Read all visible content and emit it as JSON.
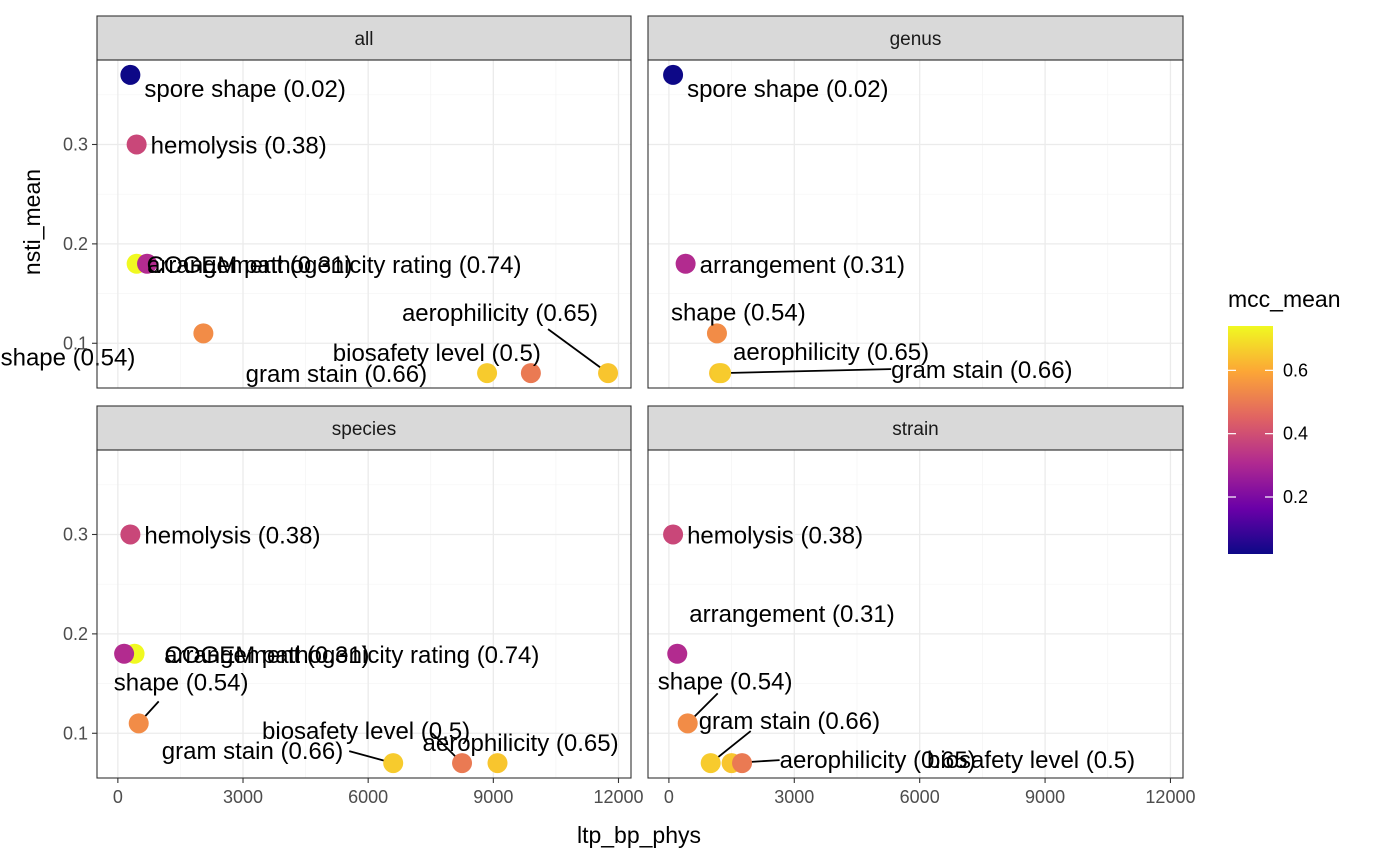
{
  "chart_data": {
    "type": "scatter",
    "xlabel": "ltp_bp_phys",
    "ylabel": "nsti_mean",
    "x_ticks": [
      0,
      3000,
      6000,
      9000,
      12000
    ],
    "y_ticks": [
      0.1,
      0.2,
      0.3
    ],
    "xlim": [
      -500,
      12300
    ],
    "ylim": [
      0.055,
      0.385
    ],
    "color_scale": {
      "name": "plasma",
      "title": "mcc_mean",
      "domain": [
        0.02,
        0.74
      ],
      "ticks": [
        0.2,
        0.4,
        0.6
      ],
      "stops": [
        "#0d0887",
        "#6a00a8",
        "#b12a90",
        "#e16462",
        "#fca636",
        "#f0f921"
      ]
    },
    "panels": [
      {
        "facet": "all",
        "points": [
          {
            "trait": "spore shape",
            "x": 300,
            "y": 0.37,
            "mcc": 0.02,
            "label": "spore shape (0.02)"
          },
          {
            "trait": "hemolysis",
            "x": 450,
            "y": 0.3,
            "mcc": 0.38,
            "label": "hemolysis (0.38)"
          },
          {
            "trait": "COGEM pathogenicity rating",
            "x": 450,
            "y": 0.18,
            "mcc": 0.74,
            "label": "COGEM pathogenicity rating (0.74)"
          },
          {
            "trait": "arrangement",
            "x": 700,
            "y": 0.18,
            "mcc": 0.31,
            "label": "arrangement (0.31)"
          },
          {
            "trait": "shape",
            "x": 2050,
            "y": 0.11,
            "mcc": 0.54,
            "label": "shape (0.54)"
          },
          {
            "trait": "gram stain",
            "x": 8850,
            "y": 0.07,
            "mcc": 0.66,
            "label": "gram stain (0.66)"
          },
          {
            "trait": "biosafety level",
            "x": 9900,
            "y": 0.07,
            "mcc": 0.5,
            "label": "biosafety level (0.5)"
          },
          {
            "trait": "aerophilicity",
            "x": 11750,
            "y": 0.07,
            "mcc": 0.65,
            "label": "aerophilicity (0.65)"
          }
        ]
      },
      {
        "facet": "genus",
        "points": [
          {
            "trait": "spore shape",
            "x": 100,
            "y": 0.37,
            "mcc": 0.02,
            "label": "spore shape (0.02)"
          },
          {
            "trait": "arrangement",
            "x": 400,
            "y": 0.18,
            "mcc": 0.31,
            "label": "arrangement (0.31)"
          },
          {
            "trait": "shape",
            "x": 1150,
            "y": 0.11,
            "mcc": 0.54,
            "label": "shape (0.54)"
          },
          {
            "trait": "aerophilicity",
            "x": 1200,
            "y": 0.07,
            "mcc": 0.65,
            "label": "aerophilicity (0.65)"
          },
          {
            "trait": "gram stain",
            "x": 1250,
            "y": 0.07,
            "mcc": 0.66,
            "label": "gram stain (0.66)"
          }
        ]
      },
      {
        "facet": "species",
        "points": [
          {
            "trait": "hemolysis",
            "x": 300,
            "y": 0.3,
            "mcc": 0.38,
            "label": "hemolysis (0.38)"
          },
          {
            "trait": "COGEM pathogenicity rating",
            "x": 400,
            "y": 0.18,
            "mcc": 0.74,
            "label": "COGEM pathogenicity rating (0.74)"
          },
          {
            "trait": "arrangement",
            "x": 150,
            "y": 0.18,
            "mcc": 0.31,
            "label": "arrangement (0.31)"
          },
          {
            "trait": "shape",
            "x": 500,
            "y": 0.11,
            "mcc": 0.54,
            "label": "shape (0.54)"
          },
          {
            "trait": "gram stain",
            "x": 6600,
            "y": 0.07,
            "mcc": 0.66,
            "label": "gram stain (0.66)"
          },
          {
            "trait": "biosafety level",
            "x": 8250,
            "y": 0.07,
            "mcc": 0.5,
            "label": "biosafety level (0.5)"
          },
          {
            "trait": "aerophilicity",
            "x": 9100,
            "y": 0.07,
            "mcc": 0.65,
            "label": "aerophilicity (0.65)"
          }
        ]
      },
      {
        "facet": "strain",
        "points": [
          {
            "trait": "hemolysis",
            "x": 100,
            "y": 0.3,
            "mcc": 0.38,
            "label": "hemolysis (0.38)"
          },
          {
            "trait": "arrangement",
            "x": 200,
            "y": 0.18,
            "mcc": 0.31,
            "label": "arrangement (0.31)"
          },
          {
            "trait": "shape",
            "x": 450,
            "y": 0.11,
            "mcc": 0.54,
            "label": "shape (0.54)"
          },
          {
            "trait": "gram stain",
            "x": 1000,
            "y": 0.07,
            "mcc": 0.66,
            "label": "gram stain (0.66)"
          },
          {
            "trait": "aerophilicity",
            "x": 1500,
            "y": 0.07,
            "mcc": 0.65,
            "label": "aerophilicity (0.65)"
          },
          {
            "trait": "biosafety level",
            "x": 1750,
            "y": 0.07,
            "mcc": 0.5,
            "label": "biosafety level (0.5)"
          }
        ]
      }
    ]
  }
}
